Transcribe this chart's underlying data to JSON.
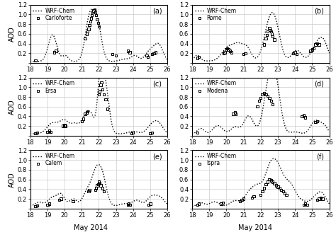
{
  "title": "",
  "xlabel": "May 2014",
  "ylabel": "AOD",
  "xlim": [
    18,
    26
  ],
  "ylim": [
    0,
    1.2
  ],
  "yticks": [
    0,
    0.2,
    0.4,
    0.6,
    0.8,
    1.0,
    1.2
  ],
  "xticks": [
    18,
    19,
    20,
    21,
    22,
    23,
    24,
    25,
    26
  ],
  "panels": [
    {
      "label": "(a)",
      "station": "Carloforte"
    },
    {
      "label": "(b)",
      "station": "Rome"
    },
    {
      "label": "(c)",
      "station": "Ersa"
    },
    {
      "label": "(d)",
      "station": "Modena"
    },
    {
      "label": "(e)",
      "station": "Calem"
    },
    {
      "label": "(f)",
      "station": "Ispra"
    }
  ],
  "wrf_label": "WRF-Chem",
  "obs_label_suffix": "",
  "background_color": "#ffffff",
  "grid_color": "#cccccc",
  "dot_color": "#000000"
}
